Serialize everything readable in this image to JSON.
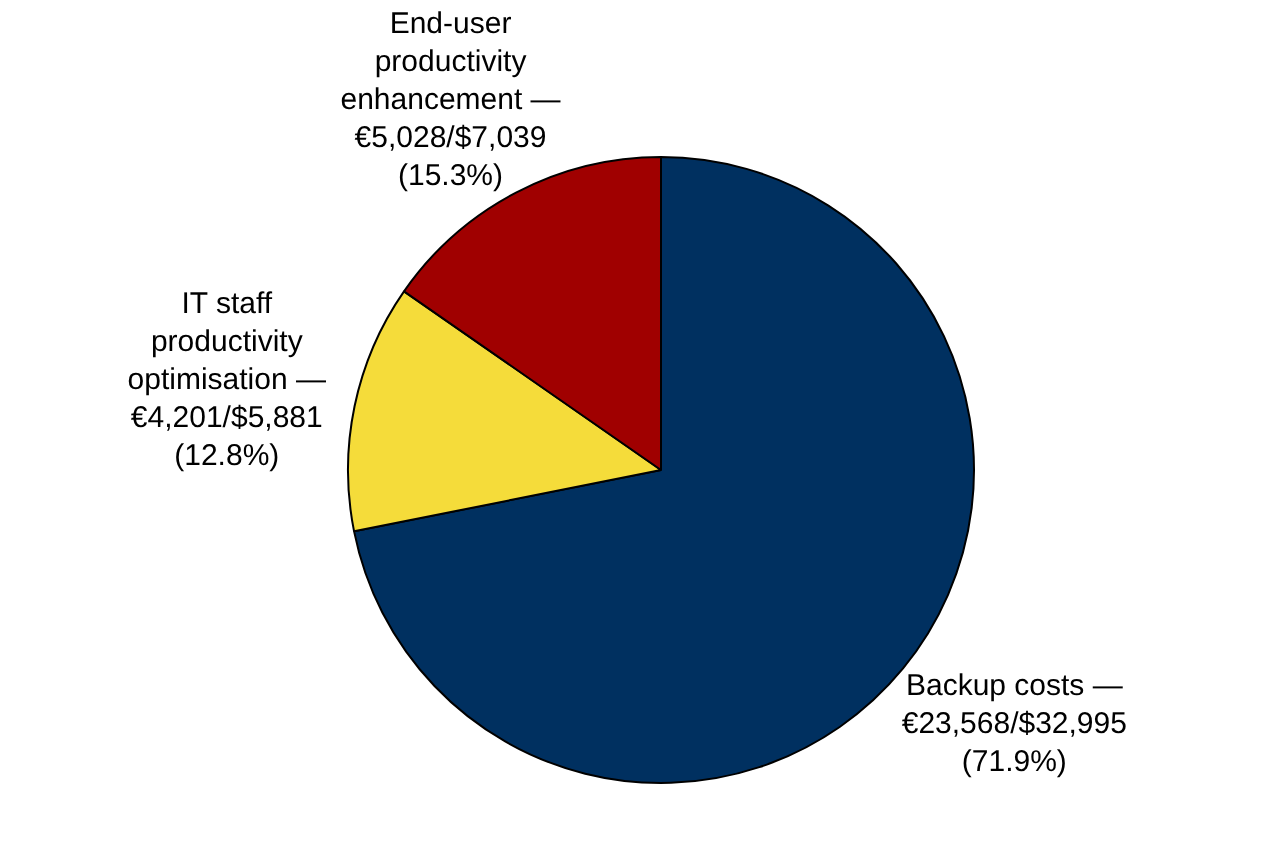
{
  "chart_data": {
    "type": "pie",
    "categories": [
      "Backup costs —",
      "IT staff productivity optimisation —",
      "End-user productivity enhancement —"
    ],
    "values": [
      23568,
      4201,
      5028
    ],
    "colors": [
      "#003060",
      "#f5dc3a",
      "#a00000"
    ],
    "value_labels": [
      "€23,568/$32,995 (71.9%)",
      "€4,201/$5,881 (12.8%)",
      "€5,028/$7,039 (15.3%)"
    ],
    "legend": false
  }
}
